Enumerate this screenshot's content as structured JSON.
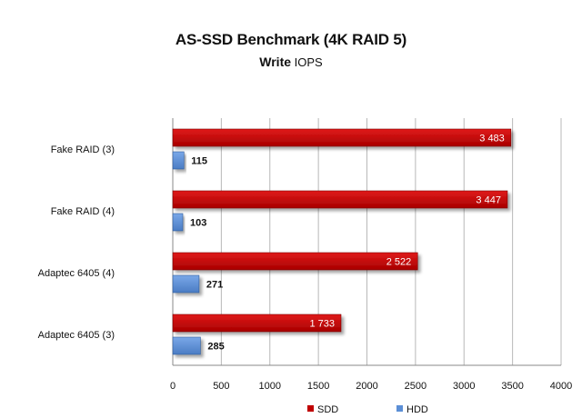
{
  "chart_data": {
    "type": "bar",
    "orientation": "horizontal",
    "title": "AS-SSD Benchmark (4K RAID 5)",
    "subtitle_bold": "Write",
    "subtitle_rest": "IOPS",
    "categories": [
      "Fake RAID (3)",
      "Fake RAID (4)",
      "Adaptec 6405 (4)",
      "Adaptec 6405 (3)"
    ],
    "series": [
      {
        "name": "SDD",
        "color": "#c00000",
        "values": [
          3483,
          3447,
          2522,
          1733
        ],
        "labels": [
          "3 483",
          "3 447",
          "2 522",
          "1 733"
        ]
      },
      {
        "name": "HDD",
        "color": "#5b8fd6",
        "values": [
          115,
          103,
          271,
          285
        ],
        "labels": [
          "115",
          "103",
          "271",
          "285"
        ]
      }
    ],
    "xlim": [
      0,
      4000
    ],
    "xticks": [
      "0",
      "500",
      "1000",
      "1500",
      "2000",
      "2500",
      "3000",
      "3500",
      "4000"
    ],
    "grid": true,
    "legend_position": "bottom"
  }
}
